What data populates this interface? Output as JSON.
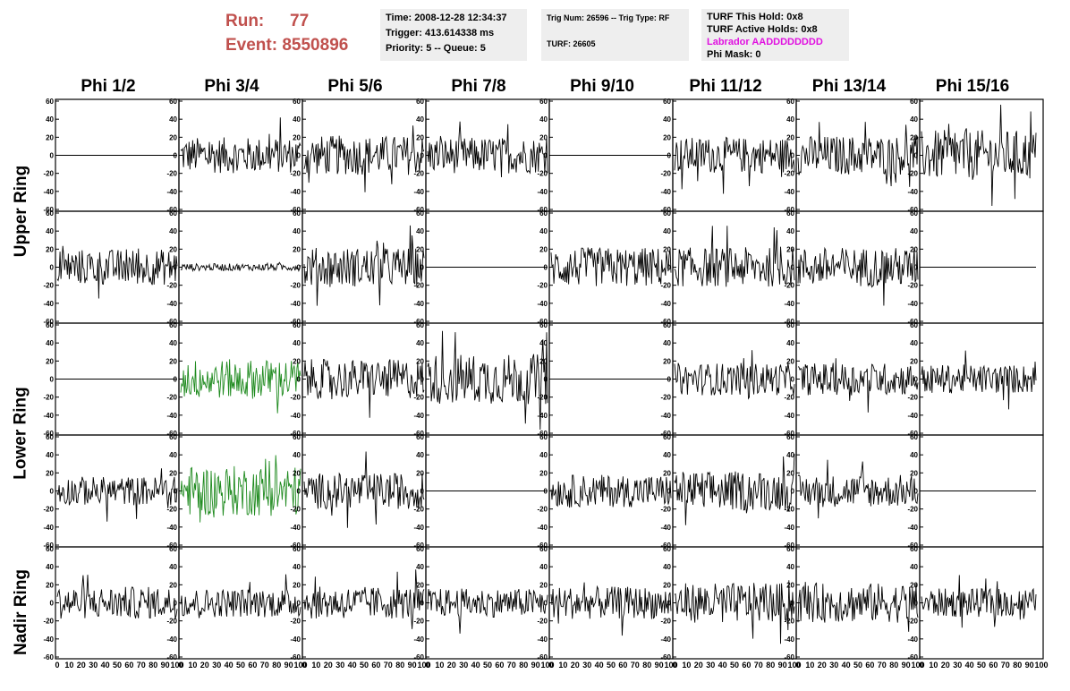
{
  "header": {
    "run_label": "Run:",
    "run_value": "77",
    "event_label": "Event:",
    "event_value": "8550896",
    "time": "Time: 2008-12-28 12:34:37",
    "trigger": "Trigger: 413.614338 ms",
    "priority": "Priority: 5 -- Queue: 5",
    "trig_num": "Trig Num: 26596 -- Trig Type: RF",
    "turf": "TURF: 26605",
    "turf_this_hold": "TURF This Hold: 0x8",
    "turf_active_holds": "TURF Active Holds: 0x8",
    "labrador": "Labrador AADDDDDDDD",
    "phi_mask": "Phi Mask: 0"
  },
  "columns": [
    "Phi 1/2",
    "Phi 3/4",
    "Phi 5/6",
    "Phi 7/8",
    "Phi 9/10",
    "Phi 11/12",
    "Phi 13/14",
    "Phi 15/16"
  ],
  "rows": [
    "Upper Ring",
    "Lower Ring",
    "Nadir Ring"
  ],
  "colors": {
    "title": "#c0504d",
    "waveform": "#000000",
    "highlight": "#1e8a1e",
    "magenta": "#e010e0",
    "box_bg": "#eeeeee"
  },
  "axes": {
    "y_ticks": [
      "60",
      "40",
      "20",
      "0",
      "-20",
      "-40",
      "-60"
    ],
    "x_ticks": [
      "0",
      "10",
      "20",
      "30",
      "40",
      "50",
      "60",
      "70",
      "80",
      "90",
      "100"
    ],
    "ylim": [
      -60,
      60
    ],
    "xlim": [
      0,
      100
    ]
  },
  "chart_data": {
    "type": "line",
    "description_rows": [
      "Upper Ring A",
      "Upper Ring B",
      "Lower Ring A",
      "Lower Ring B",
      "Nadir Ring"
    ],
    "amplitudes": [
      [
        0,
        20,
        22,
        20,
        0,
        20,
        22,
        28
      ],
      [
        20,
        4,
        22,
        0,
        22,
        22,
        22,
        0
      ],
      [
        0,
        22,
        22,
        28,
        0,
        18,
        18,
        16
      ],
      [
        16,
        28,
        20,
        0,
        18,
        22,
        18,
        0
      ],
      [
        18,
        16,
        18,
        16,
        18,
        22,
        22,
        16
      ]
    ],
    "highlight_cells": [
      [
        2,
        1
      ],
      [
        3,
        1
      ]
    ]
  }
}
